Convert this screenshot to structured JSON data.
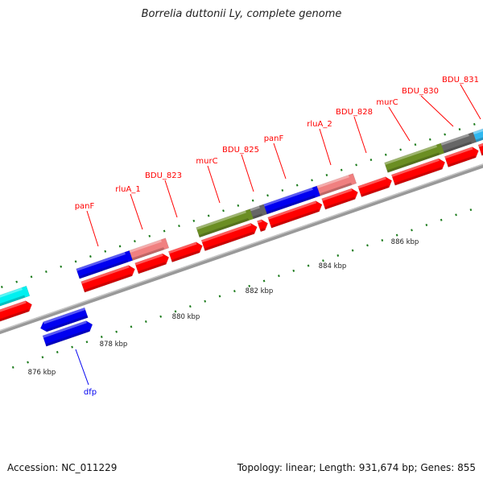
{
  "title": "Borrelia duttonii Ly, complete genome",
  "footer": {
    "accession": "Accession: NC_011229",
    "summary": "Topology: linear; Length: 931,674 bp; Genes: 855"
  },
  "colors": {
    "red": "#ff0000",
    "blue": "#0000f0",
    "pink": "#f08080",
    "olive": "#6b8e23",
    "grey": "#666666",
    "cyan": "#00f0f0",
    "skyblue": "#30b8f0",
    "axis": "#999999",
    "tick": "#1a7a1a"
  },
  "scale": {
    "unit": "kbp",
    "labels": [
      "876 kbp",
      "878 kbp",
      "880 kbp",
      "882 kbp",
      "884 kbp",
      "886 kbp"
    ],
    "major_kbp": [
      874,
      876,
      878,
      880,
      882,
      884,
      886,
      888,
      890
    ],
    "minor_step_kbp": 0.4
  },
  "genes": [
    {
      "row": "fwd",
      "color": "red",
      "start": 873.5,
      "end": 876.38,
      "strand": "+"
    },
    {
      "row": "fwd",
      "color": "red",
      "start": 877.76,
      "end": 879.17,
      "strand": "+"
    },
    {
      "row": "fwd",
      "color": "red",
      "start": 879.22,
      "end": 880.09,
      "strand": "+"
    },
    {
      "row": "fwd",
      "color": "red",
      "start": 880.13,
      "end": 881.0,
      "strand": "+"
    },
    {
      "row": "fwd",
      "color": "red",
      "start": 881.02,
      "end": 882.48,
      "strand": "+"
    },
    {
      "row": "fwd",
      "color": "red",
      "start": 882.53,
      "end": 882.77,
      "strand": "+"
    },
    {
      "row": "fwd",
      "color": "red",
      "start": 882.82,
      "end": 884.24,
      "strand": "+"
    },
    {
      "row": "fwd",
      "color": "red",
      "start": 884.28,
      "end": 885.21,
      "strand": "+"
    },
    {
      "row": "fwd",
      "color": "red",
      "start": 885.26,
      "end": 886.13,
      "strand": "+"
    },
    {
      "row": "fwd",
      "color": "red",
      "start": 886.17,
      "end": 887.57,
      "strand": "+"
    },
    {
      "row": "fwd",
      "color": "red",
      "start": 887.61,
      "end": 888.48,
      "strand": "+"
    },
    {
      "row": "fwd",
      "color": "red",
      "start": 888.52,
      "end": 890.5,
      "strand": "+"
    },
    {
      "row": "cat",
      "color": "cyan",
      "start": 873.5,
      "end": 876.4,
      "strand": ""
    },
    {
      "row": "cat",
      "color": "blue",
      "start": 877.75,
      "end": 879.19,
      "strand": ""
    },
    {
      "row": "cat",
      "color": "pink",
      "start": 879.19,
      "end": 880.17,
      "strand": ""
    },
    {
      "row": "cat",
      "color": "olive",
      "start": 881.0,
      "end": 882.46,
      "strand": ""
    },
    {
      "row": "cat",
      "color": "grey",
      "start": 882.46,
      "end": 882.83,
      "strand": ""
    },
    {
      "row": "cat",
      "color": "blue",
      "start": 882.83,
      "end": 884.27,
      "strand": ""
    },
    {
      "row": "cat",
      "color": "pink",
      "start": 884.27,
      "end": 885.25,
      "strand": ""
    },
    {
      "row": "cat",
      "color": "olive",
      "start": 886.1,
      "end": 887.63,
      "strand": ""
    },
    {
      "row": "cat",
      "color": "grey",
      "start": 887.63,
      "end": 888.5,
      "strand": ""
    },
    {
      "row": "cat",
      "color": "skyblue",
      "start": 888.5,
      "end": 890.5,
      "strand": ""
    },
    {
      "row": "rev1",
      "color": "blue",
      "start": 876.39,
      "end": 877.63,
      "strand": "-"
    },
    {
      "row": "rev2",
      "color": "blue",
      "start": 876.38,
      "end": 877.68,
      "strand": "+"
    }
  ],
  "gene_labels": [
    "panF",
    "rluA_1",
    "BDU_823",
    "murC",
    "BDU_825",
    "panF",
    "rluA_2",
    "BDU_828",
    "murC",
    "BDU_830",
    "BDU_831"
  ],
  "reverse_labels": [
    "dfp"
  ]
}
